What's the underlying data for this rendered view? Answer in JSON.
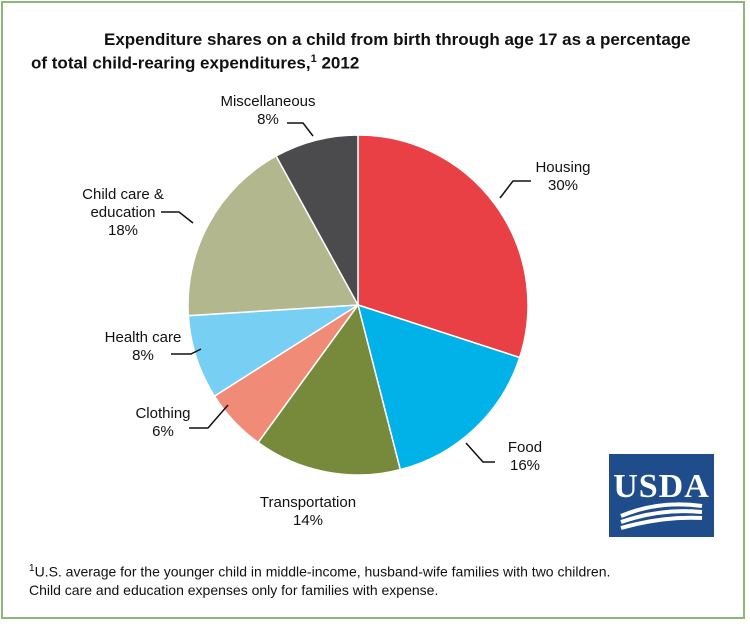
{
  "chart_data": {
    "type": "pie",
    "title_line1": "Expenditure shares on a child from birth through age 17 as a percentage",
    "title_line2": "of total child-rearing expenditures,",
    "title_sup": "1",
    "title_year": "2012",
    "slices": [
      {
        "name": "Housing",
        "value": 30,
        "label": "30%",
        "color": "#e84045"
      },
      {
        "name": "Food",
        "value": 16,
        "label": "16%",
        "color": "#00b2e8"
      },
      {
        "name": "Transportation",
        "value": 14,
        "label": "14%",
        "color": "#77893a"
      },
      {
        "name": "Clothing",
        "value": 6,
        "label": "6%",
        "color": "#f08b78"
      },
      {
        "name": "Health care",
        "value": 8,
        "label": "8%",
        "color": "#77cff4"
      },
      {
        "name": "Child care & education",
        "value": 18,
        "label": "18%",
        "color": "#b3b78e"
      },
      {
        "name": "Miscellaneous",
        "value": 8,
        "label": "8%",
        "color": "#4b4b4d"
      }
    ],
    "label_lines": {
      "child_care_line1": "Child care &",
      "child_care_line2": "education"
    }
  },
  "footnote": {
    "sup": "1",
    "line1": "U.S. average for the younger child in middle-income, husband-wife families with two children.",
    "line2": "Child care and education expenses only for families with expense."
  },
  "logo": {
    "text": "USDA",
    "color": "#1f4d8c"
  }
}
